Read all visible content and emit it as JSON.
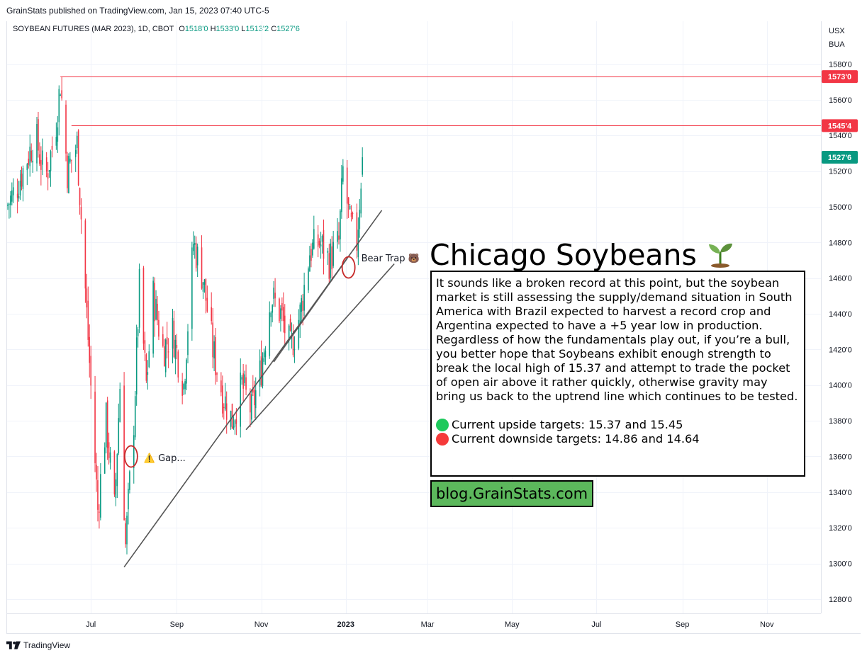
{
  "header": {
    "publisher": "GrainStats published on TradingView.com, Jan 15, 2023 07:40 UTC-5",
    "symbol": "SOYBEAN FUTURES (MAR 2023), 1D, CBOT",
    "open_label": "O",
    "open": "1518'0",
    "high_label": "H",
    "high": "1533'0",
    "low_label": "L",
    "low": "1513'2",
    "close_label": "C",
    "close": "1527'6",
    "currency": "USX",
    "unit": "BUA"
  },
  "chart_data": {
    "type": "candlestick",
    "ylim": [
      1270,
      1590
    ],
    "y_ticks": [
      "1580'0",
      "1560'0",
      "1540'0",
      "1520'0",
      "1500'0",
      "1480'0",
      "1460'0",
      "1440'0",
      "1420'0",
      "1400'0",
      "1380'0",
      "1360'0",
      "1340'0",
      "1320'0",
      "1300'0",
      "1280'0"
    ],
    "y_tick_values": [
      1580,
      1560,
      1540,
      1520,
      1500,
      1480,
      1460,
      1440,
      1420,
      1400,
      1380,
      1360,
      1340,
      1320,
      1300,
      1280
    ],
    "x_ticks": [
      {
        "label": "Jul",
        "date": "2022-07-01"
      },
      {
        "label": "Sep",
        "date": "2022-09-01"
      },
      {
        "label": "Nov",
        "date": "2022-11-01"
      },
      {
        "label": "2023",
        "date": "2023-01-01"
      },
      {
        "label": "Mar",
        "date": "2023-03-01"
      },
      {
        "label": "May",
        "date": "2023-05-01"
      },
      {
        "label": "Jul",
        "date": "2023-07-01"
      },
      {
        "label": "Sep",
        "date": "2023-09-01"
      },
      {
        "label": "Nov",
        "date": "2023-11-01"
      }
    ],
    "xlim": [
      "2022-05-01",
      "2023-12-10"
    ],
    "path_anchors": [
      {
        "date": "2022-05-01",
        "close": 1500
      },
      {
        "date": "2022-05-08",
        "close": 1510
      },
      {
        "date": "2022-05-15",
        "close": 1525
      },
      {
        "date": "2022-05-22",
        "close": 1540
      },
      {
        "date": "2022-05-29",
        "close": 1515
      },
      {
        "date": "2022-06-05",
        "close": 1540
      },
      {
        "date": "2022-06-09",
        "close": 1570
      },
      {
        "date": "2022-06-14",
        "close": 1520
      },
      {
        "date": "2022-06-21",
        "close": 1535
      },
      {
        "date": "2022-06-28",
        "close": 1440
      },
      {
        "date": "2022-07-06",
        "close": 1330
      },
      {
        "date": "2022-07-12",
        "close": 1380
      },
      {
        "date": "2022-07-18",
        "close": 1330
      },
      {
        "date": "2022-07-22",
        "close": 1400
      },
      {
        "date": "2022-07-26",
        "close": 1310
      },
      {
        "date": "2022-08-01",
        "close": 1380
      },
      {
        "date": "2022-08-05",
        "close": 1455
      },
      {
        "date": "2022-08-10",
        "close": 1400
      },
      {
        "date": "2022-08-15",
        "close": 1450
      },
      {
        "date": "2022-08-22",
        "close": 1420
      },
      {
        "date": "2022-08-29",
        "close": 1430
      },
      {
        "date": "2022-09-06",
        "close": 1400
      },
      {
        "date": "2022-09-13",
        "close": 1480
      },
      {
        "date": "2022-09-20",
        "close": 1460
      },
      {
        "date": "2022-09-27",
        "close": 1420
      },
      {
        "date": "2022-10-04",
        "close": 1395
      },
      {
        "date": "2022-10-11",
        "close": 1380
      },
      {
        "date": "2022-10-18",
        "close": 1400
      },
      {
        "date": "2022-10-25",
        "close": 1385
      },
      {
        "date": "2022-11-01",
        "close": 1410
      },
      {
        "date": "2022-11-08",
        "close": 1450
      },
      {
        "date": "2022-11-15",
        "close": 1440
      },
      {
        "date": "2022-11-22",
        "close": 1420
      },
      {
        "date": "2022-11-29",
        "close": 1440
      },
      {
        "date": "2022-12-06",
        "close": 1475
      },
      {
        "date": "2022-12-13",
        "close": 1480
      },
      {
        "date": "2022-12-20",
        "close": 1470
      },
      {
        "date": "2022-12-27",
        "close": 1480
      },
      {
        "date": "2022-12-30",
        "close": 1520
      },
      {
        "date": "2023-01-04",
        "close": 1490
      },
      {
        "date": "2023-01-09",
        "close": 1480
      },
      {
        "date": "2023-01-13",
        "close": 1528
      }
    ],
    "last_close": 1527.75,
    "price_labels": [
      {
        "value": 1573,
        "text": "1573'0",
        "color": "#f23645"
      },
      {
        "value": 1545.5,
        "text": "1545'4",
        "color": "#f23645"
      },
      {
        "value": 1527.75,
        "text": "1527'6",
        "color": "#089981"
      }
    ],
    "horizontal_lines": [
      {
        "from": "2022-06-09",
        "value": 1573,
        "color": "#f23645"
      },
      {
        "from": "2022-06-17",
        "value": 1545.5,
        "color": "#f23645"
      }
    ],
    "trendlines": [
      {
        "from": {
          "date": "2022-07-25",
          "value": 1298
        },
        "to": {
          "date": "2023-01-27",
          "value": 1498
        }
      },
      {
        "from": {
          "date": "2022-10-21",
          "value": 1375
        },
        "to": {
          "date": "2023-02-05",
          "value": 1468
        }
      },
      {
        "from": {
          "date": "2022-11-10",
          "value": 1413
        },
        "to": {
          "date": "2023-01-02",
          "value": 1471
        }
      }
    ],
    "annotations": [
      {
        "text": "⚠️ Gap...",
        "date": "2022-08-01",
        "value": 1359
      },
      {
        "text": "Bear Trap 🐻",
        "date": "2023-01-05",
        "value": 1471
      }
    ],
    "circles": [
      {
        "date": "2022-07-30",
        "value": 1360
      },
      {
        "date": "2023-01-03",
        "value": 1466
      }
    ],
    "colors": {
      "up": "#089981",
      "down": "#f23645",
      "grid": "#f0f3fa",
      "trend": "#555555"
    }
  },
  "title": "Chicago Soybeans",
  "title_icon": "sprout-icon",
  "note": "It sounds like a broken record at this point, but the soybean market is still assessing the supply/demand situation in South America with Brazil expected to harvest a record crop and Argentina expected to have a +5 year low in production. Regardless of how the fundamentals play out, if you’re a bull, you better hope that Soybeans exhibit enough strength to break the local high of 15.37 and attempt to trade the pocket of open air above it rather quickly, otherwise gravity may bring us back to the uptrend line which continues to be tested.",
  "targets": {
    "upside": "Current upside targets: 15.37 and 15.45",
    "downside": "Current downside targets: 14.86 and 14.64",
    "upside_color": "#1ec95c",
    "downside_color": "#f53a3a"
  },
  "blog": "blog.GrainStats.com",
  "blog_color": "#5cb85c",
  "footer": {
    "brand": "TradingView"
  }
}
